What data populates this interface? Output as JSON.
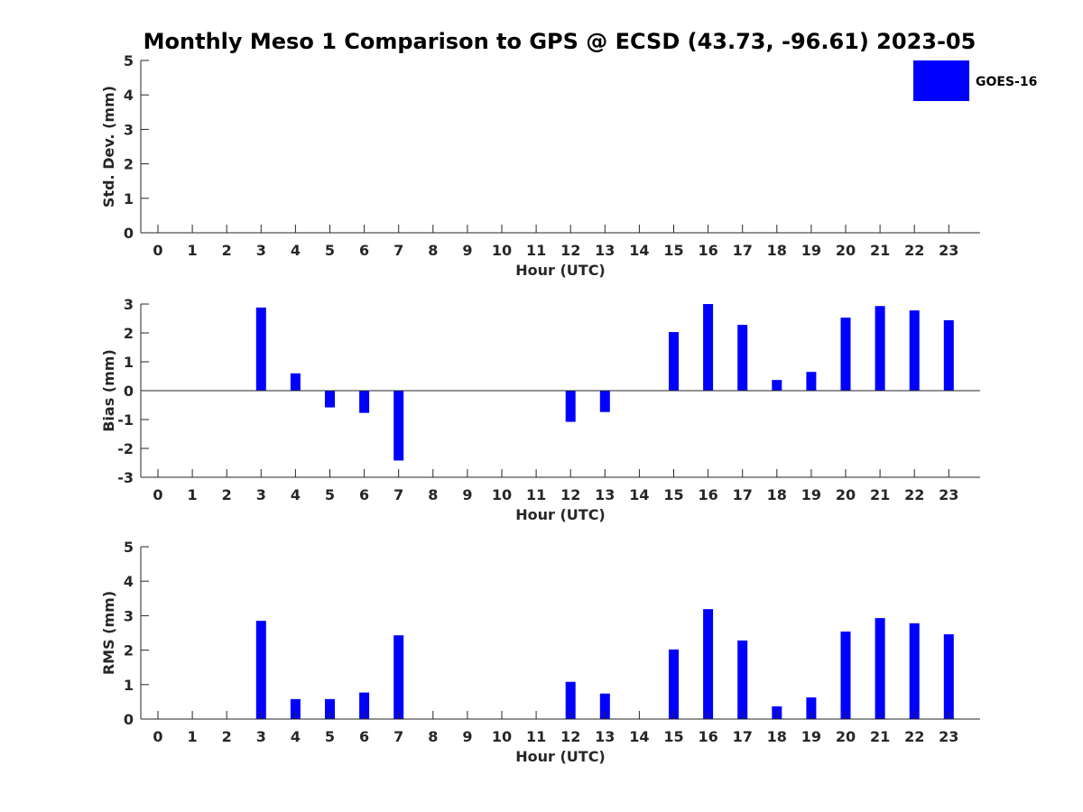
{
  "title": "Monthly Meso 1 Comparison to GPS @ ECSD (43.73, -96.61) 2023-05",
  "legend": {
    "label": "GOES-16",
    "color": "#0000ff"
  },
  "chart_data": [
    {
      "type": "bar",
      "title": "Monthly Meso 1 Comparison to GPS @ ECSD (43.73, -96.61) 2023-05",
      "xlabel": "Hour (UTC)",
      "ylabel": "Std. Dev. (mm)",
      "ylim": [
        0,
        5
      ],
      "yticks": [
        "0",
        "1",
        "2",
        "3",
        "4",
        "5"
      ],
      "categories": [
        "0",
        "1",
        "2",
        "3",
        "4",
        "5",
        "6",
        "7",
        "8",
        "9",
        "10",
        "11",
        "12",
        "13",
        "14",
        "15",
        "16",
        "17",
        "18",
        "19",
        "20",
        "21",
        "22",
        "23"
      ],
      "series": [
        {
          "name": "GOES-16",
          "color": "#0000ff",
          "values": [
            null,
            null,
            null,
            null,
            null,
            null,
            null,
            null,
            null,
            null,
            null,
            null,
            null,
            null,
            null,
            null,
            null,
            null,
            null,
            null,
            null,
            null,
            null,
            null
          ]
        }
      ],
      "legend": "top-right outside"
    },
    {
      "type": "bar",
      "xlabel": "Hour (UTC)",
      "ylabel": "Bias (mm)",
      "ylim": [
        -3,
        3
      ],
      "yticks": [
        "-3",
        "-2",
        "-1",
        "0",
        "1",
        "2",
        "3"
      ],
      "categories": [
        "0",
        "1",
        "2",
        "3",
        "4",
        "5",
        "6",
        "7",
        "8",
        "9",
        "10",
        "11",
        "12",
        "13",
        "14",
        "15",
        "16",
        "17",
        "18",
        "19",
        "20",
        "21",
        "22",
        "23"
      ],
      "series": [
        {
          "name": "GOES-16",
          "color": "#0000ff",
          "values": [
            null,
            null,
            null,
            2.88,
            0.6,
            -0.58,
            -0.77,
            -2.42,
            null,
            null,
            null,
            null,
            -1.08,
            -0.74,
            null,
            2.03,
            3.0,
            2.28,
            0.37,
            0.65,
            2.53,
            2.93,
            2.78,
            2.44
          ]
        }
      ]
    },
    {
      "type": "bar",
      "xlabel": "Hour (UTC)",
      "ylabel": "RMS (mm)",
      "ylim": [
        0,
        5
      ],
      "yticks": [
        "0",
        "1",
        "2",
        "3",
        "4",
        "5"
      ],
      "categories": [
        "0",
        "1",
        "2",
        "3",
        "4",
        "5",
        "6",
        "7",
        "8",
        "9",
        "10",
        "11",
        "12",
        "13",
        "14",
        "15",
        "16",
        "17",
        "18",
        "19",
        "20",
        "21",
        "22",
        "23"
      ],
      "series": [
        {
          "name": "GOES-16",
          "color": "#0000ff",
          "values": [
            null,
            null,
            null,
            2.85,
            0.58,
            0.58,
            0.77,
            2.43,
            null,
            null,
            null,
            null,
            1.08,
            0.74,
            null,
            2.02,
            3.19,
            2.28,
            0.37,
            0.63,
            2.54,
            2.93,
            2.78,
            2.46
          ]
        }
      ]
    }
  ]
}
